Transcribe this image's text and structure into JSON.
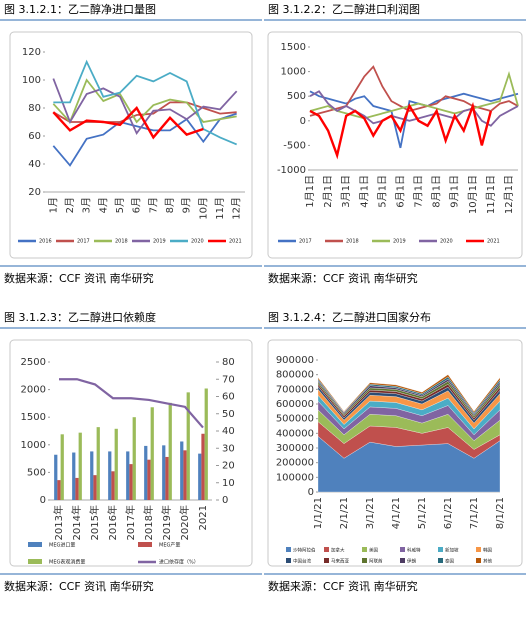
{
  "chart_data": [
    {
      "type": "line",
      "title": "图 3.1.2.1：乙二醇净进口量图",
      "source": "数据来源：CCF 资讯 南华研究",
      "categories": [
        "1月",
        "2月",
        "3月",
        "4月",
        "5月",
        "6月",
        "7月",
        "8月",
        "9月",
        "10月",
        "11月",
        "12月"
      ],
      "ylim": [
        20,
        120
      ],
      "yticks": [
        20,
        40,
        60,
        80,
        100,
        120
      ],
      "grid": false,
      "series": [
        {
          "name": "2016",
          "color": "#4472c4",
          "values": [
            53,
            39,
            58,
            61,
            70,
            67,
            64,
            64,
            72,
            56,
            72,
            76
          ]
        },
        {
          "name": "2017",
          "color": "#c0504d",
          "values": [
            77,
            70,
            70,
            70,
            70,
            75,
            76,
            84,
            84,
            80,
            76,
            77
          ]
        },
        {
          "name": "2018",
          "color": "#9bbb59",
          "values": [
            83,
            70,
            100,
            85,
            90,
            70,
            82,
            86,
            84,
            70,
            72,
            74
          ]
        },
        {
          "name": "2019",
          "color": "#8064a2",
          "values": [
            101,
            70,
            90,
            94,
            88,
            62,
            78,
            79,
            72,
            81,
            79,
            92
          ]
        },
        {
          "name": "2020",
          "color": "#4bacc6",
          "values": [
            84,
            84,
            113,
            88,
            91,
            103,
            99,
            105,
            99,
            65,
            59,
            54
          ]
        },
        {
          "name": "2021",
          "color": "#ff0000",
          "values": [
            77,
            64,
            71,
            70,
            68,
            80,
            59,
            73,
            61,
            65,
            null,
            null
          ]
        }
      ]
    },
    {
      "type": "line",
      "title": "图 3.1.2.2：乙二醇进口利润图",
      "source": "数据来源：CCF 资讯 南华研究",
      "categories": [
        "1月1日",
        null,
        "2月1日",
        null,
        "3月1日",
        null,
        "4月1日",
        null,
        "5月1日",
        null,
        "6月1日",
        null,
        "7月1日",
        null,
        "8月1日",
        null,
        "9月1日",
        null,
        "10月1日",
        null,
        "11月1日",
        null,
        "12月1日",
        null
      ],
      "ylim": [
        -1000,
        1500
      ],
      "yticks": [
        -1000,
        -500,
        0,
        500,
        1000,
        1500
      ],
      "grid": false,
      "series": [
        {
          "name": "2017",
          "color": "#4472c4",
          "values": [
            600,
            500,
            450,
            400,
            350,
            450,
            500,
            300,
            250,
            200,
            -550,
            400,
            350,
            300,
            400,
            450,
            500,
            550,
            500,
            450,
            400,
            450,
            500,
            550
          ]
        },
        {
          "name": "2018",
          "color": "#c0504d",
          "values": [
            100,
            150,
            200,
            250,
            300,
            600,
            900,
            1100,
            700,
            400,
            300,
            200,
            250,
            300,
            350,
            500,
            450,
            400,
            300,
            250,
            200,
            350,
            400,
            300
          ]
        },
        {
          "name": "2019",
          "color": "#9bbb59",
          "values": [
            200,
            250,
            300,
            200,
            150,
            100,
            50,
            100,
            150,
            200,
            250,
            300,
            350,
            300,
            250,
            200,
            150,
            200,
            250,
            300,
            350,
            400,
            950,
            300
          ]
        },
        {
          "name": "2020",
          "color": "#8064a2",
          "values": [
            500,
            600,
            350,
            200,
            300,
            200,
            100,
            -50,
            0,
            100,
            50,
            0,
            50,
            100,
            150,
            100,
            50,
            200,
            250,
            0,
            -100,
            100,
            200,
            300
          ]
        },
        {
          "name": "2021",
          "color": "#ff0000",
          "values": [
            200,
            100,
            -200,
            -700,
            100,
            200,
            50,
            -300,
            0,
            100,
            -200,
            300,
            0,
            -100,
            200,
            -400,
            100,
            -200,
            300,
            -500,
            200,
            null,
            null,
            null
          ]
        }
      ]
    },
    {
      "type": "bar",
      "title": "图 3.1.2.3：乙二醇进口依赖度",
      "source": "数据来源：CCF 资讯 南华研究",
      "categories": [
        "2013年",
        "2014年",
        "2015年",
        "2016年",
        "2017年",
        "2018年",
        "2019年",
        "2020年",
        "2021"
      ],
      "ylim": [
        0,
        2500
      ],
      "yticks": [
        0,
        500,
        1000,
        1500,
        2000,
        2500
      ],
      "y2lim": [
        0,
        80
      ],
      "y2ticks": [
        0,
        10,
        20,
        30,
        40,
        50,
        60,
        70,
        80
      ],
      "grid": false,
      "series": [
        {
          "name": "MEG进口量",
          "color": "#4f81bd",
          "values": [
            820,
            860,
            880,
            880,
            880,
            980,
            990,
            1060,
            840
          ]
        },
        {
          "name": "MEG产量",
          "color": "#c0504d",
          "values": [
            360,
            400,
            450,
            520,
            650,
            730,
            780,
            900,
            1200
          ]
        },
        {
          "name": "MEG表观消费量",
          "color": "#9bbb59",
          "values": [
            1190,
            1220,
            1320,
            1290,
            1500,
            1680,
            1760,
            1950,
            2020
          ]
        },
        {
          "name": "进口依存度（%）",
          "color": "#8064a2",
          "type": "line",
          "axis": "y2",
          "values": [
            70,
            70,
            67,
            59,
            59,
            58,
            56,
            54,
            42
          ]
        }
      ]
    },
    {
      "type": "area",
      "title": "图 3.1.2.4：乙二醇进口国家分布",
      "source": "数据来源：CCF 资讯 南华研究",
      "categories": [
        "1/1/21",
        "2/1/21",
        "3/1/21",
        "4/1/21",
        "5/1/21",
        "6/1/21",
        "7/1/21",
        "8/1/21"
      ],
      "ylim": [
        0,
        900000
      ],
      "yticks": [
        0,
        100000,
        200000,
        300000,
        400000,
        500000,
        600000,
        700000,
        800000,
        900000
      ],
      "grid": false,
      "series": [
        {
          "name": "沙特阿拉伯",
          "color": "#4f81bd",
          "values": [
            380000,
            230000,
            340000,
            310000,
            320000,
            330000,
            230000,
            350000
          ]
        },
        {
          "name": "加拿大",
          "color": "#c0504d",
          "values": [
            100000,
            100000,
            110000,
            130000,
            80000,
            110000,
            60000,
            40000
          ]
        },
        {
          "name": "美国",
          "color": "#9bbb59",
          "values": [
            80000,
            60000,
            80000,
            80000,
            70000,
            90000,
            60000,
            100000
          ]
        },
        {
          "name": "科威特",
          "color": "#8064a2",
          "values": [
            60000,
            40000,
            50000,
            50000,
            50000,
            60000,
            40000,
            70000
          ]
        },
        {
          "name": "新加坡",
          "color": "#4bacc6",
          "values": [
            40000,
            30000,
            40000,
            40000,
            40000,
            50000,
            40000,
            60000
          ]
        },
        {
          "name": "韩国",
          "color": "#f79646",
          "values": [
            40000,
            30000,
            40000,
            40000,
            40000,
            50000,
            40000,
            50000
          ]
        },
        {
          "name": "中国台湾",
          "color": "#2c4d75",
          "values": [
            20000,
            15000,
            20000,
            20000,
            20000,
            25000,
            20000,
            25000
          ]
        },
        {
          "name": "马来西亚",
          "color": "#772c2a",
          "values": [
            15000,
            15000,
            15000,
            15000,
            15000,
            20000,
            15000,
            20000
          ]
        },
        {
          "name": "阿联酋",
          "color": "#5f7530",
          "values": [
            15000,
            10000,
            15000,
            15000,
            15000,
            20000,
            15000,
            20000
          ]
        },
        {
          "name": "伊朗",
          "color": "#4d3b62",
          "values": [
            10000,
            10000,
            15000,
            10000,
            10000,
            15000,
            10000,
            15000
          ]
        },
        {
          "name": "泰国",
          "color": "#276a7c",
          "values": [
            10000,
            5000,
            10000,
            10000,
            10000,
            15000,
            10000,
            15000
          ]
        },
        {
          "name": "其他",
          "color": "#b65708",
          "values": [
            10000,
            5000,
            10000,
            10000,
            10000,
            15000,
            10000,
            15000
          ]
        }
      ]
    }
  ]
}
